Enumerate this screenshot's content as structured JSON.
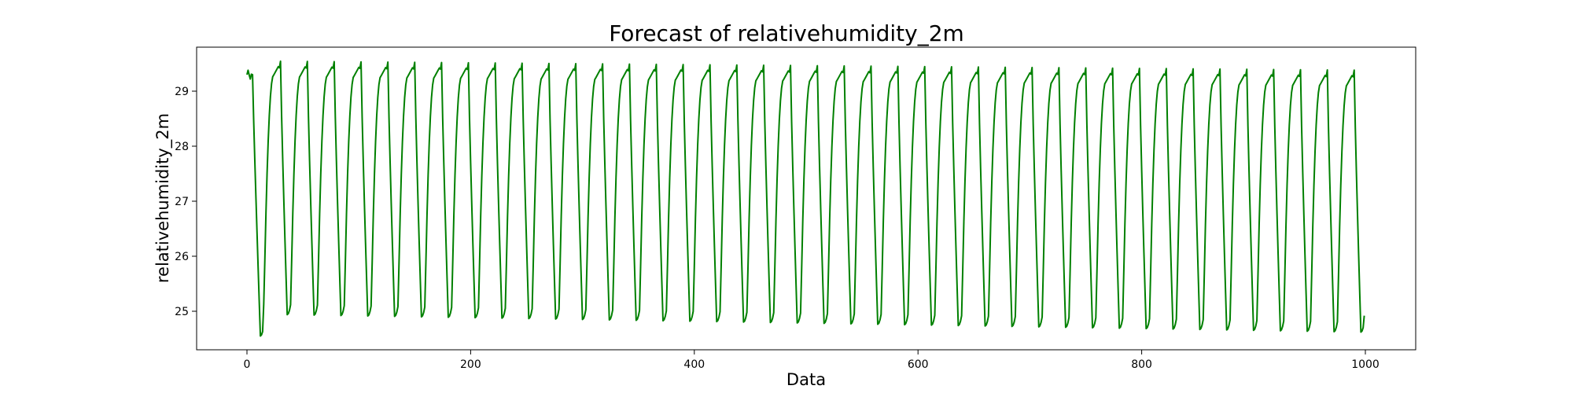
{
  "chart_data": {
    "type": "line",
    "title": "Forecast of relativehumidity_2m",
    "xlabel": "Data",
    "ylabel": "relativehumidity_2m",
    "xlim": [
      -45,
      1045
    ],
    "ylim": [
      24.3,
      29.8
    ],
    "xticks": [
      0,
      200,
      400,
      600,
      800,
      1000
    ],
    "yticks": [
      25,
      26,
      27,
      28,
      29
    ],
    "grid": false,
    "legend": "none",
    "series": [
      {
        "color": "#008000",
        "x_start": 0,
        "x_end": 999,
        "period": 24,
        "cycle_count": 41,
        "first_trough_x": 12,
        "first_trough_value": 24.55,
        "last_trough_value": 24.62,
        "cycle_peak_start": 29.55,
        "cycle_peak_end": 29.38,
        "trough_start": 24.95,
        "trough_end": 24.62,
        "start_value": 29.3,
        "end_value": 24.92
      }
    ]
  }
}
